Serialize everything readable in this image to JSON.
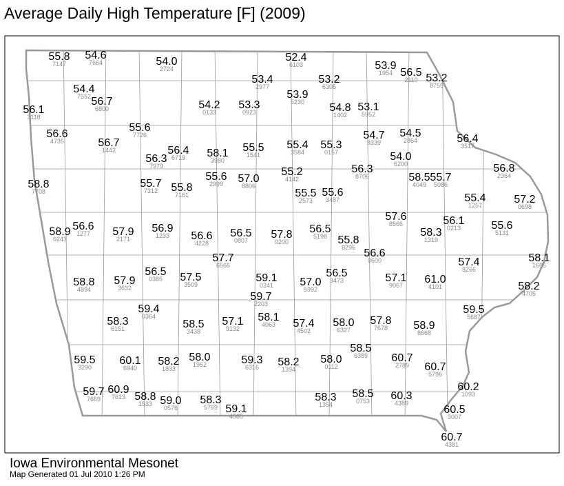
{
  "title": "Average Daily High Temperature [F] (2009)",
  "footer": {
    "source": "Iowa Environmental Mesonet",
    "generated": "Map Generated 01 Jul 2010 1:26 PM"
  },
  "stations": [
    {
      "temp": "55.8",
      "id": "7147"
    },
    {
      "temp": "54.6",
      "id": "7664"
    },
    {
      "temp": "54.0",
      "id": "2724"
    },
    {
      "temp": "52.4",
      "id": "6103"
    },
    {
      "temp": "53.9",
      "id": "1954"
    },
    {
      "temp": "56.5",
      "id": "2110"
    },
    {
      "temp": "53.2",
      "id": "8755"
    },
    {
      "temp": "53.4",
      "id": "2977"
    },
    {
      "temp": "53.2",
      "id": "6305"
    },
    {
      "temp": "54.4",
      "id": "7552"
    },
    {
      "temp": "56.7",
      "id": "6800"
    },
    {
      "temp": "56.1",
      "id": "3118"
    },
    {
      "temp": "53.9",
      "id": "5230"
    },
    {
      "temp": "54.2",
      "id": "0133"
    },
    {
      "temp": "53.3",
      "id": "0923"
    },
    {
      "temp": "54.8",
      "id": "1402"
    },
    {
      "temp": "53.1",
      "id": "5952"
    },
    {
      "temp": "55.6",
      "id": "7726"
    },
    {
      "temp": "56.6",
      "id": "4735"
    },
    {
      "temp": "56.7",
      "id": "1442"
    },
    {
      "temp": "54.7",
      "id": "8339"
    },
    {
      "temp": "54.5",
      "id": "2864"
    },
    {
      "temp": "56.4",
      "id": "3517"
    },
    {
      "temp": "56.3",
      "id": "7979"
    },
    {
      "temp": "56.4",
      "id": "6719"
    },
    {
      "temp": "58.1",
      "id": "3980"
    },
    {
      "temp": "55.5",
      "id": "1541"
    },
    {
      "temp": "55.4",
      "id": "3584"
    },
    {
      "temp": "55.3",
      "id": "0157"
    },
    {
      "temp": "54.0",
      "id": "6200"
    },
    {
      "temp": "56.8",
      "id": "2364"
    },
    {
      "temp": "56.3",
      "id": "8706"
    },
    {
      "temp": "55.6",
      "id": "2999"
    },
    {
      "temp": "57.0",
      "id": "8806"
    },
    {
      "temp": "55.2",
      "id": "4142"
    },
    {
      "temp": "58.5",
      "id": "4049"
    },
    {
      "temp": "55.7",
      "id": "5086"
    },
    {
      "temp": "58.8",
      "id": "7708"
    },
    {
      "temp": "55.7",
      "id": "7312"
    },
    {
      "temp": "55.8",
      "id": "7161"
    },
    {
      "temp": "55.5",
      "id": "2573"
    },
    {
      "temp": "55.6",
      "id": "3487"
    },
    {
      "temp": "55.4",
      "id": "1257"
    },
    {
      "temp": "57.2",
      "id": "0698"
    },
    {
      "temp": "57.6",
      "id": "8566"
    },
    {
      "temp": "56.1",
      "id": "0213"
    },
    {
      "temp": "55.6",
      "id": "5131"
    },
    {
      "temp": "58.9",
      "id": "6243"
    },
    {
      "temp": "56.6",
      "id": "1277"
    },
    {
      "temp": "57.9",
      "id": "2171"
    },
    {
      "temp": "56.9",
      "id": "1233"
    },
    {
      "temp": "56.6",
      "id": "4228"
    },
    {
      "temp": "56.5",
      "id": "0807"
    },
    {
      "temp": "57.8",
      "id": "0200"
    },
    {
      "temp": "56.5",
      "id": "5198"
    },
    {
      "temp": "58.3",
      "id": "1319"
    },
    {
      "temp": "55.8",
      "id": "8296"
    },
    {
      "temp": "56.6",
      "id": "0600"
    },
    {
      "temp": "57.7",
      "id": "6566"
    },
    {
      "temp": "58.1",
      "id": "1685"
    },
    {
      "temp": "57.4",
      "id": "8266"
    },
    {
      "temp": "58.8",
      "id": "4894"
    },
    {
      "temp": "57.9",
      "id": "3632"
    },
    {
      "temp": "56.5",
      "id": "0385"
    },
    {
      "temp": "57.5",
      "id": "3509"
    },
    {
      "temp": "59.1",
      "id": "0241"
    },
    {
      "temp": "57.0",
      "id": "5992"
    },
    {
      "temp": "56.5",
      "id": "3473"
    },
    {
      "temp": "57.1",
      "id": "9067"
    },
    {
      "temp": "61.0",
      "id": "4101"
    },
    {
      "temp": "58.2",
      "id": "4705"
    },
    {
      "temp": "59.7",
      "id": "2203"
    },
    {
      "temp": "59.4",
      "id": "0364"
    },
    {
      "temp": "59.5",
      "id": "5687"
    },
    {
      "temp": "58.3",
      "id": "6151"
    },
    {
      "temp": "58.5",
      "id": "3438"
    },
    {
      "temp": "57.1",
      "id": "9132"
    },
    {
      "temp": "58.1",
      "id": "4063"
    },
    {
      "temp": "57.4",
      "id": "4502"
    },
    {
      "temp": "58.0",
      "id": "6327"
    },
    {
      "temp": "57.8",
      "id": "7678"
    },
    {
      "temp": "58.9",
      "id": "8668"
    },
    {
      "temp": "58.5",
      "id": "6389"
    },
    {
      "temp": "59.5",
      "id": "3290"
    },
    {
      "temp": "60.1",
      "id": "6940"
    },
    {
      "temp": "58.2",
      "id": "1833"
    },
    {
      "temp": "58.0",
      "id": "1962"
    },
    {
      "temp": "59.3",
      "id": "6316"
    },
    {
      "temp": "58.2",
      "id": "1394"
    },
    {
      "temp": "58.0",
      "id": "0112"
    },
    {
      "temp": "60.7",
      "id": "2789"
    },
    {
      "temp": "60.7",
      "id": "5796"
    },
    {
      "temp": "60.2",
      "id": "1093"
    },
    {
      "temp": "59.7",
      "id": "7669"
    },
    {
      "temp": "60.9",
      "id": "7613"
    },
    {
      "temp": "58.8",
      "id": "1533"
    },
    {
      "temp": "59.0",
      "id": "0576"
    },
    {
      "temp": "58.3",
      "id": "5769"
    },
    {
      "temp": "59.1",
      "id": "4585"
    },
    {
      "temp": "58.3",
      "id": "1354"
    },
    {
      "temp": "58.5",
      "id": "0753"
    },
    {
      "temp": "60.3",
      "id": "4389"
    },
    {
      "temp": "60.5",
      "id": "3007"
    },
    {
      "temp": "60.7",
      "id": "4381"
    }
  ]
}
